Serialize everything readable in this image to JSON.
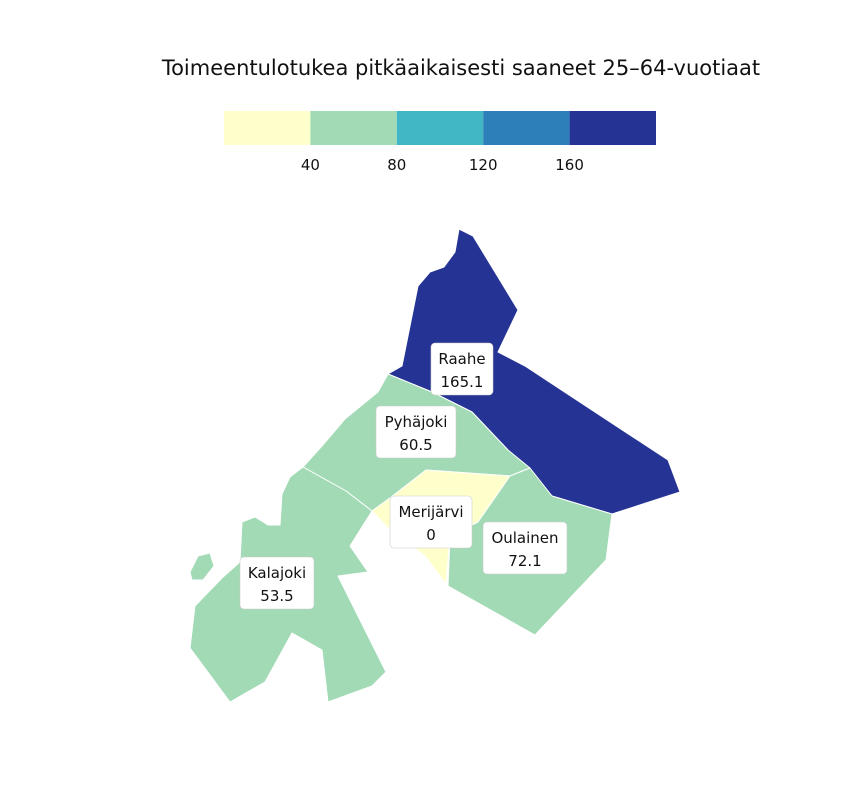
{
  "title": "Toimeentulotukea pitkäaikaisesti saaneet 25–64-vuotiaat",
  "legend": {
    "breaks": [
      40,
      80,
      120,
      160
    ],
    "colors": [
      "#ffffcc",
      "#a1dab4",
      "#41b6c4",
      "#2c7fb8",
      "#253494"
    ],
    "range": [
      0,
      200
    ]
  },
  "chart_data": {
    "type": "choropleth",
    "title": "Toimeentulotukea pitkäaikaisesti saaneet 25–64-vuotiaat",
    "regions": [
      {
        "name": "Raahe",
        "value": "165.1"
      },
      {
        "name": "Pyhäjoki",
        "value": "60.5"
      },
      {
        "name": "Merijärvi",
        "value": "0"
      },
      {
        "name": "Oulainen",
        "value": "72.1"
      },
      {
        "name": "Kalajoki",
        "value": "53.5"
      }
    ]
  }
}
